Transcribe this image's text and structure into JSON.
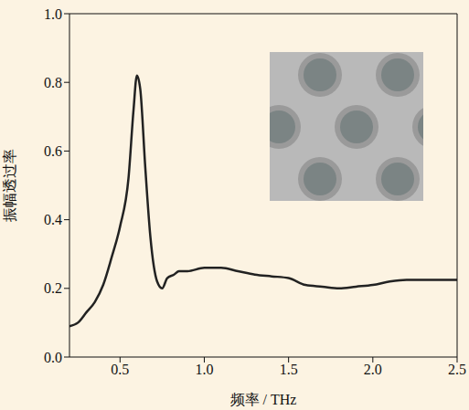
{
  "chart_data": {
    "type": "line",
    "x_label": "频率 / THz",
    "y_label": "振幅透过率",
    "x": [
      0.2,
      0.25,
      0.3,
      0.35,
      0.4,
      0.45,
      0.5,
      0.55,
      0.58,
      0.6,
      0.62,
      0.65,
      0.68,
      0.72,
      0.75,
      0.78,
      0.82,
      0.85,
      0.9,
      1.0,
      1.1,
      1.2,
      1.3,
      1.4,
      1.5,
      1.6,
      1.7,
      1.8,
      1.9,
      2.0,
      2.1,
      2.2,
      2.3,
      2.4,
      2.5
    ],
    "values": [
      0.09,
      0.1,
      0.13,
      0.16,
      0.21,
      0.29,
      0.38,
      0.52,
      0.72,
      0.82,
      0.78,
      0.55,
      0.35,
      0.22,
      0.2,
      0.23,
      0.24,
      0.25,
      0.25,
      0.26,
      0.26,
      0.25,
      0.24,
      0.235,
      0.23,
      0.21,
      0.205,
      0.2,
      0.205,
      0.21,
      0.22,
      0.225,
      0.225,
      0.225,
      0.225
    ],
    "color": "#222222",
    "xlim": [
      0.2,
      2.5
    ],
    "xticks": [
      0.5,
      {
        "value": 1,
        "label": "1.0"
      },
      1.5,
      {
        "value": 2,
        "label": "2.0"
      },
      2.5
    ],
    "ylim": [
      0,
      1
    ],
    "yticks": [
      {
        "value": 0,
        "label": "0.0"
      },
      0.2,
      0.4,
      0.6,
      0.8,
      {
        "value": 1,
        "label": "1.0"
      }
    ],
    "grid": false
  }
}
